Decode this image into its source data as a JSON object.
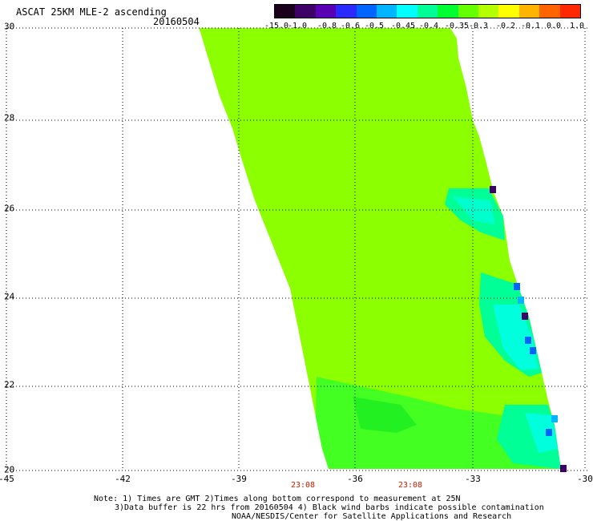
{
  "title": "ASCAT 25KM MLE-2 ascending",
  "date": "20160504",
  "colorbar": {
    "labels": [
      "-15.0",
      "-1.0",
      "-0.8",
      "-0.6",
      "-0.5",
      "-0.45",
      "-0.4",
      "-0.35",
      "-0.3",
      "-0.2",
      "-0.1",
      "0.0",
      "1.0"
    ],
    "colors": [
      "#1a001a",
      "#3c0066",
      "#5a00b4",
      "#2a2aff",
      "#0064ff",
      "#00b4ff",
      "#00ffff",
      "#00ff96",
      "#00ff32",
      "#64ff00",
      "#b4ff00",
      "#ffff00",
      "#ffb400",
      "#ff6400",
      "#ff2800"
    ]
  },
  "axes": {
    "lon_labels": [
      "-45",
      "-42",
      "-39",
      "-36",
      "-33",
      "-30"
    ],
    "lat_labels": [
      "20",
      "22",
      "24",
      "26",
      "28",
      "30"
    ]
  },
  "times": [
    "23:08",
    "23:08"
  ],
  "notes": {
    "line1": "Note: 1) Times are GMT 2)Times along bottom correspond to measurement at 25N",
    "line2": "3)Data buffer is 22 hrs from 20160504 4) Black wind barbs indicate possible contamination",
    "line3": "NOAA/NESDIS/Center for Satellite Applications and Research"
  }
}
